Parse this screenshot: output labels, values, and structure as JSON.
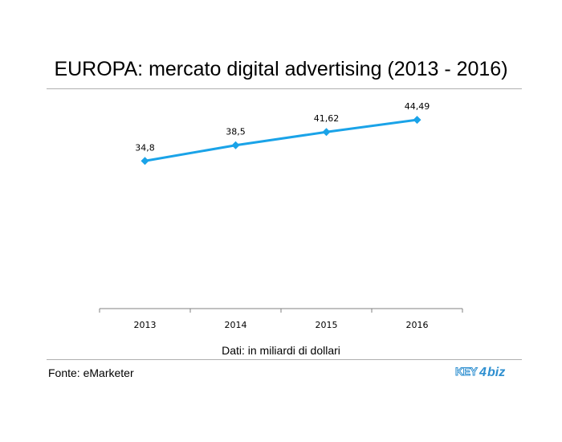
{
  "chart_data": {
    "type": "line",
    "title": "EUROPA: mercato digital advertising (2013 - 2016)",
    "categories": [
      "2013",
      "2014",
      "2015",
      "2016"
    ],
    "series": [
      {
        "values": [
          34.8,
          38.5,
          41.62,
          44.49
        ],
        "data_labels": [
          "34,8",
          "38,5",
          "41,62",
          "44,49"
        ]
      }
    ],
    "ylim": [
      0,
      50
    ],
    "grid": false,
    "legend": "none",
    "colors": {
      "line": "#1aa3e8",
      "axis": "#808080",
      "rules": "#b0b0b0"
    }
  },
  "notes": {
    "units": "Dati: in miliardi di dollari",
    "source": "Fonte: eMarketer"
  },
  "logo": {
    "text": "KEY4biz",
    "colors": {
      "key": "#2e8fd0",
      "biz": "#2e8fd0"
    }
  }
}
